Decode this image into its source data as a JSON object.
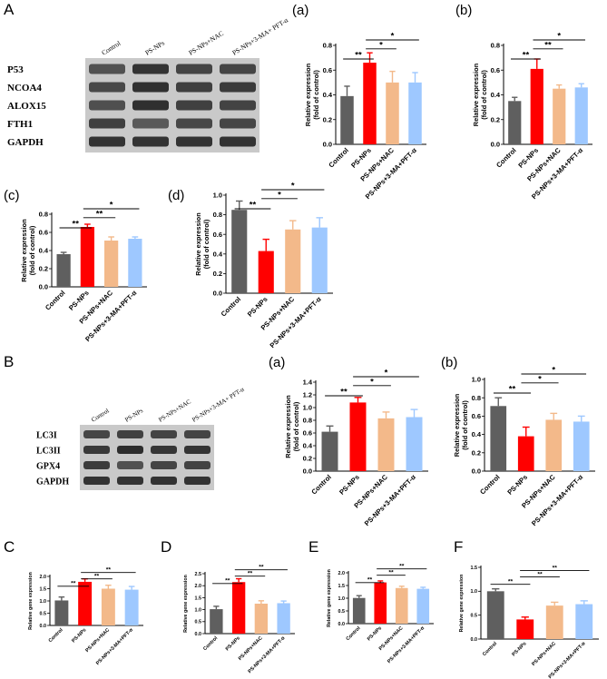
{
  "colors": {
    "control": "#5f5f5f",
    "ps": "#ff0000",
    "nac": "#f3b98a",
    "ma": "#9ec8ff"
  },
  "panels": {
    "A": "A",
    "B": "B",
    "C": "C",
    "D": "D",
    "E": "E",
    "F": "F",
    "a": "(a)",
    "b": "(b)",
    "c": "(c)",
    "d": "(d)",
    "Ba": "(a)",
    "Bb": "(b)"
  },
  "blotA": {
    "lanes": [
      "Control",
      "PS-NPs",
      "PS-NPs+NAC",
      "PS-NPs+3-MA+ PFT-α"
    ],
    "proteins": [
      "P53",
      "NCOA4",
      "ALOX15",
      "FTH1",
      "GAPDH"
    ]
  },
  "blotB": {
    "lanes": [
      "Control",
      "PS-NPs",
      "PS-NPs+NAC",
      "PS-NPs+3-MA+ PFT-α"
    ],
    "proteins": [
      "LC3I",
      "LC3II",
      "GPX4",
      "GAPDH"
    ]
  },
  "chart_data": [
    {
      "id": "Aa",
      "type": "bar",
      "categories": [
        "Control",
        "PS-NPs",
        "PS-NPs+NAC",
        "PS-NPs+3-MA+PFT-α"
      ],
      "values": [
        0.39,
        0.66,
        0.5,
        0.5
      ],
      "errors": [
        0.08,
        0.08,
        0.09,
        0.08
      ],
      "ylim": [
        0,
        0.8
      ],
      "yticks": [
        "0.0",
        "0.2",
        "0.4",
        "0.6",
        "0.8"
      ],
      "ylabel": "Relative expression",
      "ylabel2": "(fold of control)",
      "significance": [
        "**",
        "*",
        "*"
      ]
    },
    {
      "id": "Ab",
      "type": "bar",
      "categories": [
        "Control",
        "PS-NPs",
        "PS-NPs+NAC",
        "PS-NPs+3-MA+PFT-α"
      ],
      "values": [
        0.35,
        0.61,
        0.45,
        0.46
      ],
      "errors": [
        0.03,
        0.08,
        0.03,
        0.03
      ],
      "ylim": [
        0,
        0.8
      ],
      "yticks": [
        "0.0",
        "0.2",
        "0.4",
        "0.6",
        "0.8"
      ],
      "ylabel": "Relative expression",
      "ylabel2": "(fold of control)",
      "significance": [
        "**",
        "**",
        "*"
      ]
    },
    {
      "id": "Ac",
      "type": "bar",
      "categories": [
        "Control",
        "PS-NPs",
        "PS-NPs+NAC",
        "PS-NPs+3-MA+PFT-α"
      ],
      "values": [
        0.36,
        0.66,
        0.51,
        0.53
      ],
      "errors": [
        0.02,
        0.03,
        0.04,
        0.02
      ],
      "ylim": [
        0,
        0.8
      ],
      "yticks": [
        "0.0",
        "0.2",
        "0.4",
        "0.6",
        "0.8"
      ],
      "ylabel": "Relative expression",
      "ylabel2": "(fold of control)",
      "significance": [
        "**",
        "**",
        "*"
      ]
    },
    {
      "id": "Ad",
      "type": "bar",
      "categories": [
        "Control",
        "PS-NPs",
        "PS-NPs+NAC",
        "PS-NPs+3-MA+PFT-α"
      ],
      "values": [
        0.85,
        0.43,
        0.65,
        0.67
      ],
      "errors": [
        0.09,
        0.12,
        0.09,
        0.1
      ],
      "ylim": [
        0,
        1.0
      ],
      "yticks": [
        "0.0",
        "0.2",
        "0.4",
        "0.6",
        "0.8",
        "1.0"
      ],
      "ylabel": "Relative expression",
      "ylabel2": "(fold of control)",
      "significance": [
        "**",
        "*",
        "*"
      ]
    },
    {
      "id": "Ba",
      "type": "bar",
      "categories": [
        "Control",
        "PS-NPs",
        "PS-NPs+NAC",
        "PS-NPs+3-MA+PFT-α"
      ],
      "values": [
        0.62,
        1.08,
        0.83,
        0.85
      ],
      "errors": [
        0.09,
        0.08,
        0.1,
        0.12
      ],
      "ylim": [
        0,
        1.4
      ],
      "yticks": [
        "0.0",
        "0.2",
        "0.4",
        "0.6",
        "0.8",
        "1.0",
        "1.2",
        "1.4"
      ],
      "ylabel": "Relative expression",
      "ylabel2": "(fold of control)",
      "significance": [
        "**",
        "*",
        "*"
      ]
    },
    {
      "id": "Bb",
      "type": "bar",
      "categories": [
        "Control",
        "PS-NPs",
        "PS-NPs+NAC",
        "PS-NPs+3-MA+PFT-α"
      ],
      "values": [
        0.71,
        0.38,
        0.56,
        0.54
      ],
      "errors": [
        0.09,
        0.1,
        0.07,
        0.06
      ],
      "ylim": [
        0,
        1.0
      ],
      "yticks": [
        "0.0",
        "0.2",
        "0.4",
        "0.6",
        "0.8",
        "1.0"
      ],
      "ylabel": "Relative expression",
      "ylabel2": "(fold of control)",
      "significance": [
        "**",
        "*",
        "*"
      ]
    },
    {
      "id": "C",
      "type": "bar",
      "categories": [
        "Control",
        "PS-NPs",
        "PS-NPs+NAC",
        "PS-NPs+3-MA+PFT-α"
      ],
      "values": [
        1.02,
        1.78,
        1.5,
        1.46
      ],
      "errors": [
        0.14,
        0.12,
        0.14,
        0.13
      ],
      "ylim": [
        0,
        2.0
      ],
      "yticks": [
        "0.0",
        "0.5",
        "1.0",
        "1.5",
        "2.0"
      ],
      "ylabel": "Relative gene expression",
      "ylabel2": "",
      "significance": [
        "**",
        "**",
        "**"
      ]
    },
    {
      "id": "D",
      "type": "bar",
      "categories": [
        "Control",
        "PS-NPs",
        "PS-NPs+NAC",
        "PS-NPs+3-MA+PFT-α"
      ],
      "values": [
        1.02,
        2.15,
        1.25,
        1.27
      ],
      "errors": [
        0.12,
        0.14,
        0.12,
        0.09
      ],
      "ylim": [
        0,
        2.5
      ],
      "yticks": [
        "0.0",
        "0.5",
        "1.0",
        "1.5",
        "2.0",
        "2.5"
      ],
      "ylabel": "Relative gene expression",
      "ylabel2": "",
      "significance": [
        "**",
        "**",
        "**"
      ]
    },
    {
      "id": "E",
      "type": "bar",
      "categories": [
        "Control",
        "PS-NPs",
        "PS-NPs+NAC",
        "PS-NPs+3-MA+PFT-α"
      ],
      "values": [
        1.01,
        1.62,
        1.4,
        1.37
      ],
      "errors": [
        0.09,
        0.06,
        0.07,
        0.06
      ],
      "ylim": [
        0,
        2.0
      ],
      "yticks": [
        "0.0",
        "0.5",
        "1.0",
        "1.5",
        "2.0"
      ],
      "ylabel": "Relative gene expression",
      "ylabel2": "",
      "significance": [
        "**",
        "**",
        "**"
      ]
    },
    {
      "id": "F",
      "type": "bar",
      "categories": [
        "Control",
        "PS-NPs",
        "PS-NPs+NAC",
        "PS-NPs+3-MA+PFT-α"
      ],
      "values": [
        1.0,
        0.41,
        0.7,
        0.73
      ],
      "errors": [
        0.05,
        0.05,
        0.07,
        0.07
      ],
      "ylim": [
        0,
        1.5
      ],
      "yticks": [
        "0.0",
        "0.5",
        "1.0",
        "1.5"
      ],
      "ylabel": "Relative gene expression",
      "ylabel2": "",
      "significance": [
        "**",
        "**",
        "**"
      ]
    }
  ]
}
